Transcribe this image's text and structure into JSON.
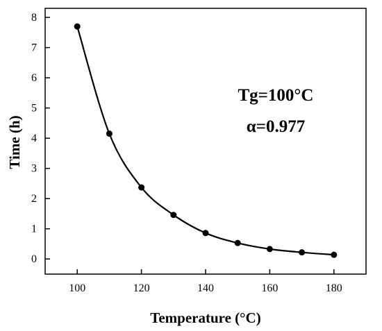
{
  "chart_data": {
    "type": "line",
    "xlabel": "Temperature (°C)",
    "ylabel": "Time (h)",
    "xlim": [
      90,
      190
    ],
    "ylim": [
      -0.5,
      8.3
    ],
    "xticks": [
      100,
      120,
      140,
      160,
      180
    ],
    "yticks": [
      0,
      1,
      2,
      3,
      4,
      5,
      6,
      7,
      8
    ],
    "grid": false,
    "markers": "filled-circle",
    "line_color": "#000000",
    "x": [
      100,
      110,
      120,
      130,
      140,
      150,
      160,
      170,
      180
    ],
    "series": [
      {
        "values": [
          7.7,
          4.15,
          2.37,
          1.46,
          0.86,
          0.53,
          0.33,
          0.22,
          0.14
        ]
      }
    ],
    "annotations": [
      "Tg=100°C",
      "α=0.977"
    ]
  }
}
